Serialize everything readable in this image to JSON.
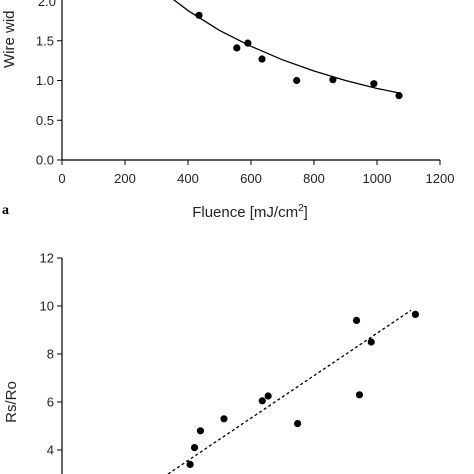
{
  "chart_data": [
    {
      "type": "scatter",
      "panel_label": "a",
      "xlabel": "Fluence [mJ/cm",
      "xlabel_sup": "2",
      "xlabel_end": "]",
      "ylabel": "Wire wid",
      "ylabel_top": "2.0",
      "xlim": [
        0,
        1200
      ],
      "ylim": [
        0.0,
        2.0
      ],
      "x_ticks": [
        "0",
        "200",
        "400",
        "600",
        "800",
        "1000",
        "1200"
      ],
      "y_ticks": [
        "0.0",
        "0.5",
        "1.0",
        "1.5"
      ],
      "points": [
        {
          "x": 435,
          "y": 1.82
        },
        {
          "x": 555,
          "y": 1.41
        },
        {
          "x": 590,
          "y": 1.47
        },
        {
          "x": 635,
          "y": 1.27
        },
        {
          "x": 745,
          "y": 1.0
        },
        {
          "x": 860,
          "y": 1.01
        },
        {
          "x": 990,
          "y": 0.96
        },
        {
          "x": 1070,
          "y": 0.81
        }
      ],
      "fit": {
        "type": "solid-curve",
        "x": [
          350,
          400,
          500,
          600,
          700,
          800,
          900,
          1000,
          1075
        ],
        "y": [
          2.03,
          1.88,
          1.63,
          1.43,
          1.26,
          1.12,
          1.0,
          0.9,
          0.84
        ]
      }
    },
    {
      "type": "scatter",
      "ylabel": "Rs/Ro",
      "xlim": [
        0,
        1200
      ],
      "ylim": [
        3,
        12
      ],
      "y_ticks": [
        "4",
        "6",
        "8",
        "10",
        "12"
      ],
      "points": [
        {
          "x": 435,
          "y": 3.4
        },
        {
          "x": 450,
          "y": 4.1
        },
        {
          "x": 470,
          "y": 4.8
        },
        {
          "x": 550,
          "y": 5.3
        },
        {
          "x": 680,
          "y": 6.05
        },
        {
          "x": 700,
          "y": 6.25
        },
        {
          "x": 800,
          "y": 5.1
        },
        {
          "x": 1000,
          "y": 9.4
        },
        {
          "x": 1010,
          "y": 6.3
        },
        {
          "x": 1050,
          "y": 8.5
        },
        {
          "x": 1200,
          "y": 9.65
        }
      ],
      "fit": {
        "type": "dashed-line",
        "x": [
          360,
          1185
        ],
        "y": [
          3.0,
          9.82
        ]
      }
    }
  ]
}
